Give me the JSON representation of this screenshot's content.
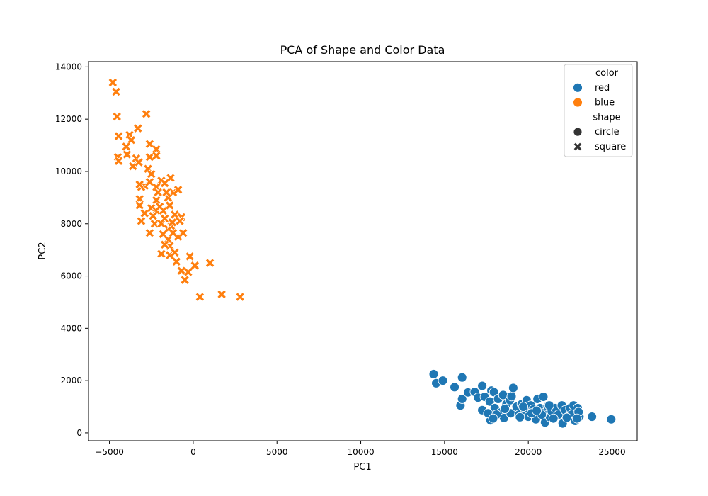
{
  "chart_data": {
    "type": "scatter",
    "title": "PCA of Shape and Color Data",
    "xlabel": "PC1",
    "ylabel": "PC2",
    "xlim": [
      -6250,
      26500
    ],
    "ylim": [
      -300,
      14200
    ],
    "x_ticks": [
      -5000,
      0,
      5000,
      10000,
      15000,
      20000,
      25000
    ],
    "y_ticks": [
      0,
      2000,
      4000,
      6000,
      8000,
      10000,
      12000,
      14000
    ],
    "grid": false,
    "legend_position": "top-right",
    "legend": {
      "color_title": "color",
      "shape_title": "shape",
      "color_entries": [
        {
          "label": "red",
          "color": "#1f77b4"
        },
        {
          "label": "blue",
          "color": "#ff7f0e"
        }
      ],
      "shape_entries": [
        {
          "label": "circle",
          "marker": "circle"
        },
        {
          "label": "square",
          "marker": "x"
        }
      ]
    },
    "series": [
      {
        "name": "red",
        "color": "#1f77b4",
        "marker": "circle",
        "points": [
          [
            14350,
            2250
          ],
          [
            14500,
            1900
          ],
          [
            14900,
            2000
          ],
          [
            15600,
            1750
          ],
          [
            16050,
            2120
          ],
          [
            15950,
            1050
          ],
          [
            16050,
            1300
          ],
          [
            16400,
            1550
          ],
          [
            16800,
            1570
          ],
          [
            17000,
            1350
          ],
          [
            17250,
            1800
          ],
          [
            17250,
            870
          ],
          [
            17400,
            1380
          ],
          [
            17700,
            1200
          ],
          [
            17750,
            480
          ],
          [
            17800,
            1620
          ],
          [
            17950,
            1560
          ],
          [
            18000,
            950
          ],
          [
            18200,
            1300
          ],
          [
            18350,
            780
          ],
          [
            18500,
            1450
          ],
          [
            18550,
            570
          ],
          [
            18700,
            1100
          ],
          [
            18900,
            1250
          ],
          [
            18950,
            750
          ],
          [
            19000,
            1400
          ],
          [
            19100,
            1720
          ],
          [
            19300,
            1000
          ],
          [
            19450,
            700
          ],
          [
            19600,
            1100
          ],
          [
            19800,
            800
          ],
          [
            19900,
            1250
          ],
          [
            20000,
            620
          ],
          [
            20150,
            1050
          ],
          [
            20300,
            900
          ],
          [
            20450,
            520
          ],
          [
            20550,
            1300
          ],
          [
            20700,
            950
          ],
          [
            20850,
            750
          ],
          [
            20900,
            1380
          ],
          [
            21000,
            400
          ],
          [
            21150,
            1020
          ],
          [
            21300,
            600
          ],
          [
            21400,
            820
          ],
          [
            21600,
            950
          ],
          [
            21800,
            700
          ],
          [
            22000,
            1050
          ],
          [
            22050,
            360
          ],
          [
            22200,
            870
          ],
          [
            22350,
            600
          ],
          [
            22500,
            950
          ],
          [
            22600,
            700
          ],
          [
            22700,
            1050
          ],
          [
            22800,
            460
          ],
          [
            22950,
            950
          ],
          [
            23050,
            620
          ],
          [
            23800,
            620
          ],
          [
            24950,
            520
          ],
          [
            17600,
            750
          ],
          [
            18100,
            700
          ],
          [
            19500,
            600
          ],
          [
            20200,
            750
          ],
          [
            20800,
            700
          ],
          [
            21500,
            550
          ],
          [
            22300,
            580
          ],
          [
            23000,
            800
          ],
          [
            18600,
            920
          ],
          [
            19700,
            1000
          ],
          [
            21250,
            1050
          ],
          [
            22900,
            550
          ],
          [
            17900,
            550
          ],
          [
            20500,
            850
          ]
        ]
      },
      {
        "name": "blue",
        "color": "#ff7f0e",
        "marker": "x",
        "points": [
          [
            -4800,
            13400
          ],
          [
            -4600,
            13050
          ],
          [
            -4550,
            12100
          ],
          [
            -2800,
            12200
          ],
          [
            -4450,
            11350
          ],
          [
            -3300,
            11650
          ],
          [
            -3800,
            11400
          ],
          [
            -3700,
            11200
          ],
          [
            -4000,
            10950
          ],
          [
            -2600,
            11050
          ],
          [
            -2200,
            10850
          ],
          [
            -4500,
            10550
          ],
          [
            -4450,
            10400
          ],
          [
            -3950,
            10650
          ],
          [
            -3600,
            10200
          ],
          [
            -3400,
            10500
          ],
          [
            -2600,
            10550
          ],
          [
            -2200,
            10600
          ],
          [
            -3250,
            10350
          ],
          [
            -2700,
            10100
          ],
          [
            -2500,
            9900
          ],
          [
            -1900,
            9650
          ],
          [
            -1350,
            9750
          ],
          [
            -2200,
            9400
          ],
          [
            -2900,
            9450
          ],
          [
            -3100,
            9400
          ],
          [
            -3200,
            9500
          ],
          [
            -1700,
            9550
          ],
          [
            -1200,
            9200
          ],
          [
            -900,
            9300
          ],
          [
            -2100,
            9200
          ],
          [
            -1500,
            9000
          ],
          [
            -2200,
            8900
          ],
          [
            -3200,
            8950
          ],
          [
            -3200,
            8700
          ],
          [
            -2900,
            8400
          ],
          [
            -2500,
            8600
          ],
          [
            -2200,
            8500
          ],
          [
            -1800,
            8500
          ],
          [
            -1400,
            8700
          ],
          [
            -1100,
            8350
          ],
          [
            -700,
            8250
          ],
          [
            -3100,
            8100
          ],
          [
            -2600,
            7650
          ],
          [
            -2300,
            8000
          ],
          [
            -1900,
            8000
          ],
          [
            -1500,
            7800
          ],
          [
            -1300,
            7900
          ],
          [
            -900,
            7500
          ],
          [
            -600,
            7650
          ],
          [
            -1800,
            7600
          ],
          [
            -1500,
            7400
          ],
          [
            -1400,
            7150
          ],
          [
            -1900,
            6850
          ],
          [
            -1400,
            6800
          ],
          [
            -1000,
            6550
          ],
          [
            -700,
            6200
          ],
          [
            -300,
            6150
          ],
          [
            -500,
            5850
          ],
          [
            -200,
            6750
          ],
          [
            100,
            6400
          ],
          [
            1000,
            6500
          ],
          [
            400,
            5200
          ],
          [
            1700,
            5300
          ],
          [
            2800,
            5200
          ],
          [
            -2400,
            8300
          ],
          [
            -1700,
            8200
          ],
          [
            -1200,
            7650
          ],
          [
            -1700,
            7200
          ],
          [
            -2000,
            8650
          ],
          [
            -1600,
            9200
          ],
          [
            -800,
            8100
          ],
          [
            -1100,
            6900
          ],
          [
            -2600,
            9600
          ],
          [
            -1250,
            8050
          ]
        ]
      }
    ]
  }
}
